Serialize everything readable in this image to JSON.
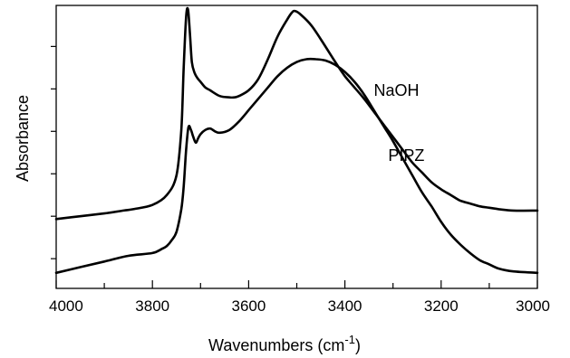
{
  "chart_data": {
    "type": "line",
    "xlabel_main": "Wavenumbers (cm",
    "xlabel_sup": "-1",
    "xlabel_close": ")",
    "ylabel": "Absorbance",
    "xlim": [
      4000,
      3000
    ],
    "x_reversed": true,
    "ylim": [
      0,
      1
    ],
    "y_tick_labels_shown": false,
    "x_ticks": [
      4000,
      3800,
      3600,
      3400,
      3200,
      3000
    ],
    "x_tick_labels": [
      "4000",
      "3800",
      "3600",
      "3400",
      "3200",
      "3000"
    ],
    "x_minor_ticks": [
      3900,
      3700,
      3500,
      3300,
      3100
    ],
    "y_ticks": [
      0.105,
      0.255,
      0.405,
      0.555,
      0.705,
      0.855
    ],
    "grid": false,
    "legend": "none (curves labeled directly)",
    "series": [
      {
        "name": "NaOH",
        "x": [
          4000,
          3950,
          3900,
          3860,
          3840,
          3800,
          3770,
          3750,
          3740,
          3735,
          3730,
          3726,
          3722,
          3718,
          3712,
          3705,
          3700,
          3690,
          3680,
          3660,
          3640,
          3630,
          3620,
          3600,
          3580,
          3560,
          3540,
          3520,
          3510,
          3503,
          3490,
          3470,
          3450,
          3420,
          3400,
          3380,
          3360,
          3340,
          3320,
          3300,
          3280,
          3260,
          3240,
          3220,
          3200,
          3180,
          3160,
          3140,
          3120,
          3100,
          3080,
          3050,
          3000
        ],
        "y": [
          0.245,
          0.255,
          0.265,
          0.275,
          0.28,
          0.295,
          0.33,
          0.4,
          0.56,
          0.78,
          0.96,
          0.985,
          0.9,
          0.8,
          0.76,
          0.74,
          0.73,
          0.71,
          0.7,
          0.68,
          0.675,
          0.675,
          0.68,
          0.7,
          0.74,
          0.81,
          0.89,
          0.95,
          0.975,
          0.98,
          0.965,
          0.93,
          0.88,
          0.8,
          0.75,
          0.71,
          0.67,
          0.625,
          0.58,
          0.535,
          0.49,
          0.445,
          0.41,
          0.375,
          0.35,
          0.33,
          0.31,
          0.3,
          0.29,
          0.285,
          0.28,
          0.275,
          0.275
        ]
      },
      {
        "name": "PIPZ",
        "x": [
          4000,
          3950,
          3900,
          3850,
          3800,
          3780,
          3770,
          3760,
          3750,
          3740,
          3735,
          3730,
          3725,
          3720,
          3715,
          3710,
          3705,
          3700,
          3690,
          3680,
          3670,
          3660,
          3640,
          3620,
          3600,
          3580,
          3560,
          3540,
          3520,
          3500,
          3480,
          3460,
          3440,
          3420,
          3400,
          3380,
          3360,
          3340,
          3320,
          3300,
          3280,
          3260,
          3240,
          3220,
          3200,
          3180,
          3160,
          3140,
          3120,
          3100,
          3080,
          3050,
          3000
        ],
        "y": [
          0.055,
          0.075,
          0.095,
          0.115,
          0.125,
          0.14,
          0.15,
          0.17,
          0.2,
          0.28,
          0.36,
          0.49,
          0.57,
          0.56,
          0.535,
          0.515,
          0.53,
          0.545,
          0.56,
          0.565,
          0.555,
          0.55,
          0.56,
          0.59,
          0.63,
          0.67,
          0.71,
          0.75,
          0.78,
          0.8,
          0.81,
          0.81,
          0.805,
          0.79,
          0.765,
          0.73,
          0.685,
          0.63,
          0.575,
          0.52,
          0.46,
          0.4,
          0.34,
          0.29,
          0.235,
          0.19,
          0.155,
          0.125,
          0.1,
          0.085,
          0.07,
          0.06,
          0.055
        ]
      }
    ]
  }
}
